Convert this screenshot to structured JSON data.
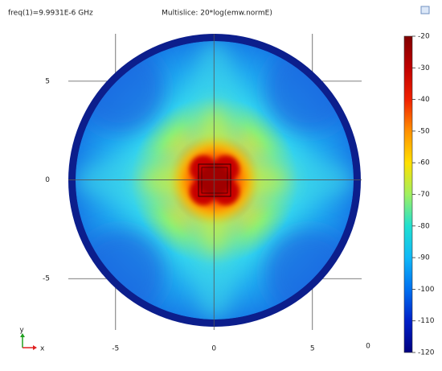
{
  "chart_data": {
    "type": "field_plot",
    "subtitle": "freq(1)=9.9931E-6 GHz",
    "title": "Multislice: 20*log(emw.normE)",
    "xlim": [
      -7.4,
      7.5
    ],
    "ylim": [
      -7.6,
      7.4
    ],
    "xticks": [
      -5,
      0,
      5
    ],
    "yticks": [
      -5,
      0,
      5
    ],
    "clim": [
      -120,
      -20
    ],
    "cticks": [
      -20,
      -30,
      -40,
      -50,
      -60,
      -70,
      -80,
      -90,
      -100,
      -110,
      -120
    ],
    "grid": true,
    "annotation": "0",
    "triad": {
      "x": "x",
      "y": "y"
    }
  }
}
